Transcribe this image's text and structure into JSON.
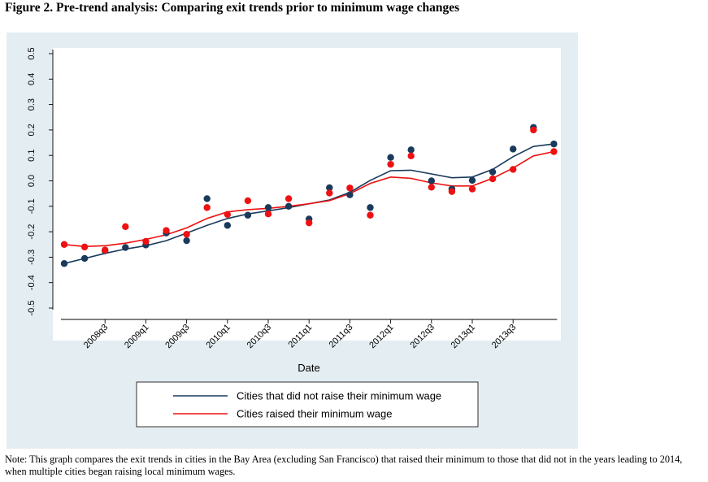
{
  "figure_title": "Figure 2. Pre-trend analysis: Comparing exit trends prior to minimum wage changes",
  "note": "Note: This graph compares the exit trends in cities in the Bay Area (excluding San Francisco) that raised their minimum to those that did not in the years leading to 2014, when multiple cities began raising local minimum wages.",
  "colors": {
    "panel_bg": "#e4edf2",
    "plot_bg": "#ffffff",
    "series_not_raise": "#1a3a5c",
    "series_raise": "#ee1111"
  },
  "chart_data": {
    "type": "scatter",
    "title": "",
    "xlabel": "Date",
    "ylabel": "",
    "ylim": [
      -0.5,
      0.5
    ],
    "yticks": [
      "-0.5",
      "-0.4",
      "-0.3",
      "-0.2",
      "-0.1",
      "0.0",
      "0.1",
      "0.2",
      "0.3",
      "0.4",
      "0.5"
    ],
    "xticks": [
      "2008q3",
      "2009q1",
      "2009q3",
      "2010q1",
      "2010q3",
      "2011q1",
      "2011q3",
      "2012q1",
      "2012q3",
      "2013q1",
      "2013q3"
    ],
    "x": [
      "2008q1",
      "2008q2",
      "2008q3",
      "2008q4",
      "2009q1",
      "2009q2",
      "2009q3",
      "2009q4",
      "2010q1",
      "2010q2",
      "2010q3",
      "2010q4",
      "2011q1",
      "2011q2",
      "2011q3",
      "2011q4",
      "2012q1",
      "2012q2",
      "2012q3",
      "2012q4",
      "2013q1",
      "2013q2",
      "2013q3",
      "2013q4",
      "2014q1"
    ],
    "legend_position": "bottom",
    "grid": false,
    "series": [
      {
        "name": "Cities that did not raise their minimum wage",
        "points": [
          -0.325,
          -0.305,
          -0.275,
          -0.262,
          -0.252,
          -0.205,
          -0.235,
          -0.07,
          -0.175,
          -0.135,
          -0.105,
          -0.1,
          -0.15,
          -0.027,
          -0.055,
          -0.105,
          0.092,
          0.122,
          0.0,
          -0.032,
          0.002,
          0.035,
          0.125,
          0.21,
          0.145
        ],
        "trend": [
          -0.325,
          -0.305,
          -0.285,
          -0.268,
          -0.255,
          -0.235,
          -0.205,
          -0.175,
          -0.148,
          -0.13,
          -0.118,
          -0.105,
          -0.09,
          -0.075,
          -0.045,
          0.002,
          0.04,
          0.042,
          0.027,
          0.012,
          0.015,
          0.045,
          0.095,
          0.135,
          0.145
        ]
      },
      {
        "name": "Cities raised their minimum wage",
        "points": [
          -0.25,
          -0.26,
          -0.272,
          -0.18,
          -0.238,
          -0.195,
          -0.21,
          -0.105,
          -0.132,
          -0.078,
          -0.13,
          -0.07,
          -0.165,
          -0.048,
          -0.028,
          -0.135,
          0.065,
          0.098,
          -0.025,
          -0.042,
          -0.032,
          0.008,
          0.045,
          0.2,
          0.115
        ],
        "trend": [
          -0.25,
          -0.258,
          -0.255,
          -0.245,
          -0.23,
          -0.212,
          -0.185,
          -0.148,
          -0.122,
          -0.113,
          -0.108,
          -0.1,
          -0.09,
          -0.078,
          -0.05,
          -0.01,
          0.015,
          0.01,
          -0.008,
          -0.02,
          -0.02,
          0.01,
          0.05,
          0.098,
          0.115
        ]
      }
    ]
  }
}
